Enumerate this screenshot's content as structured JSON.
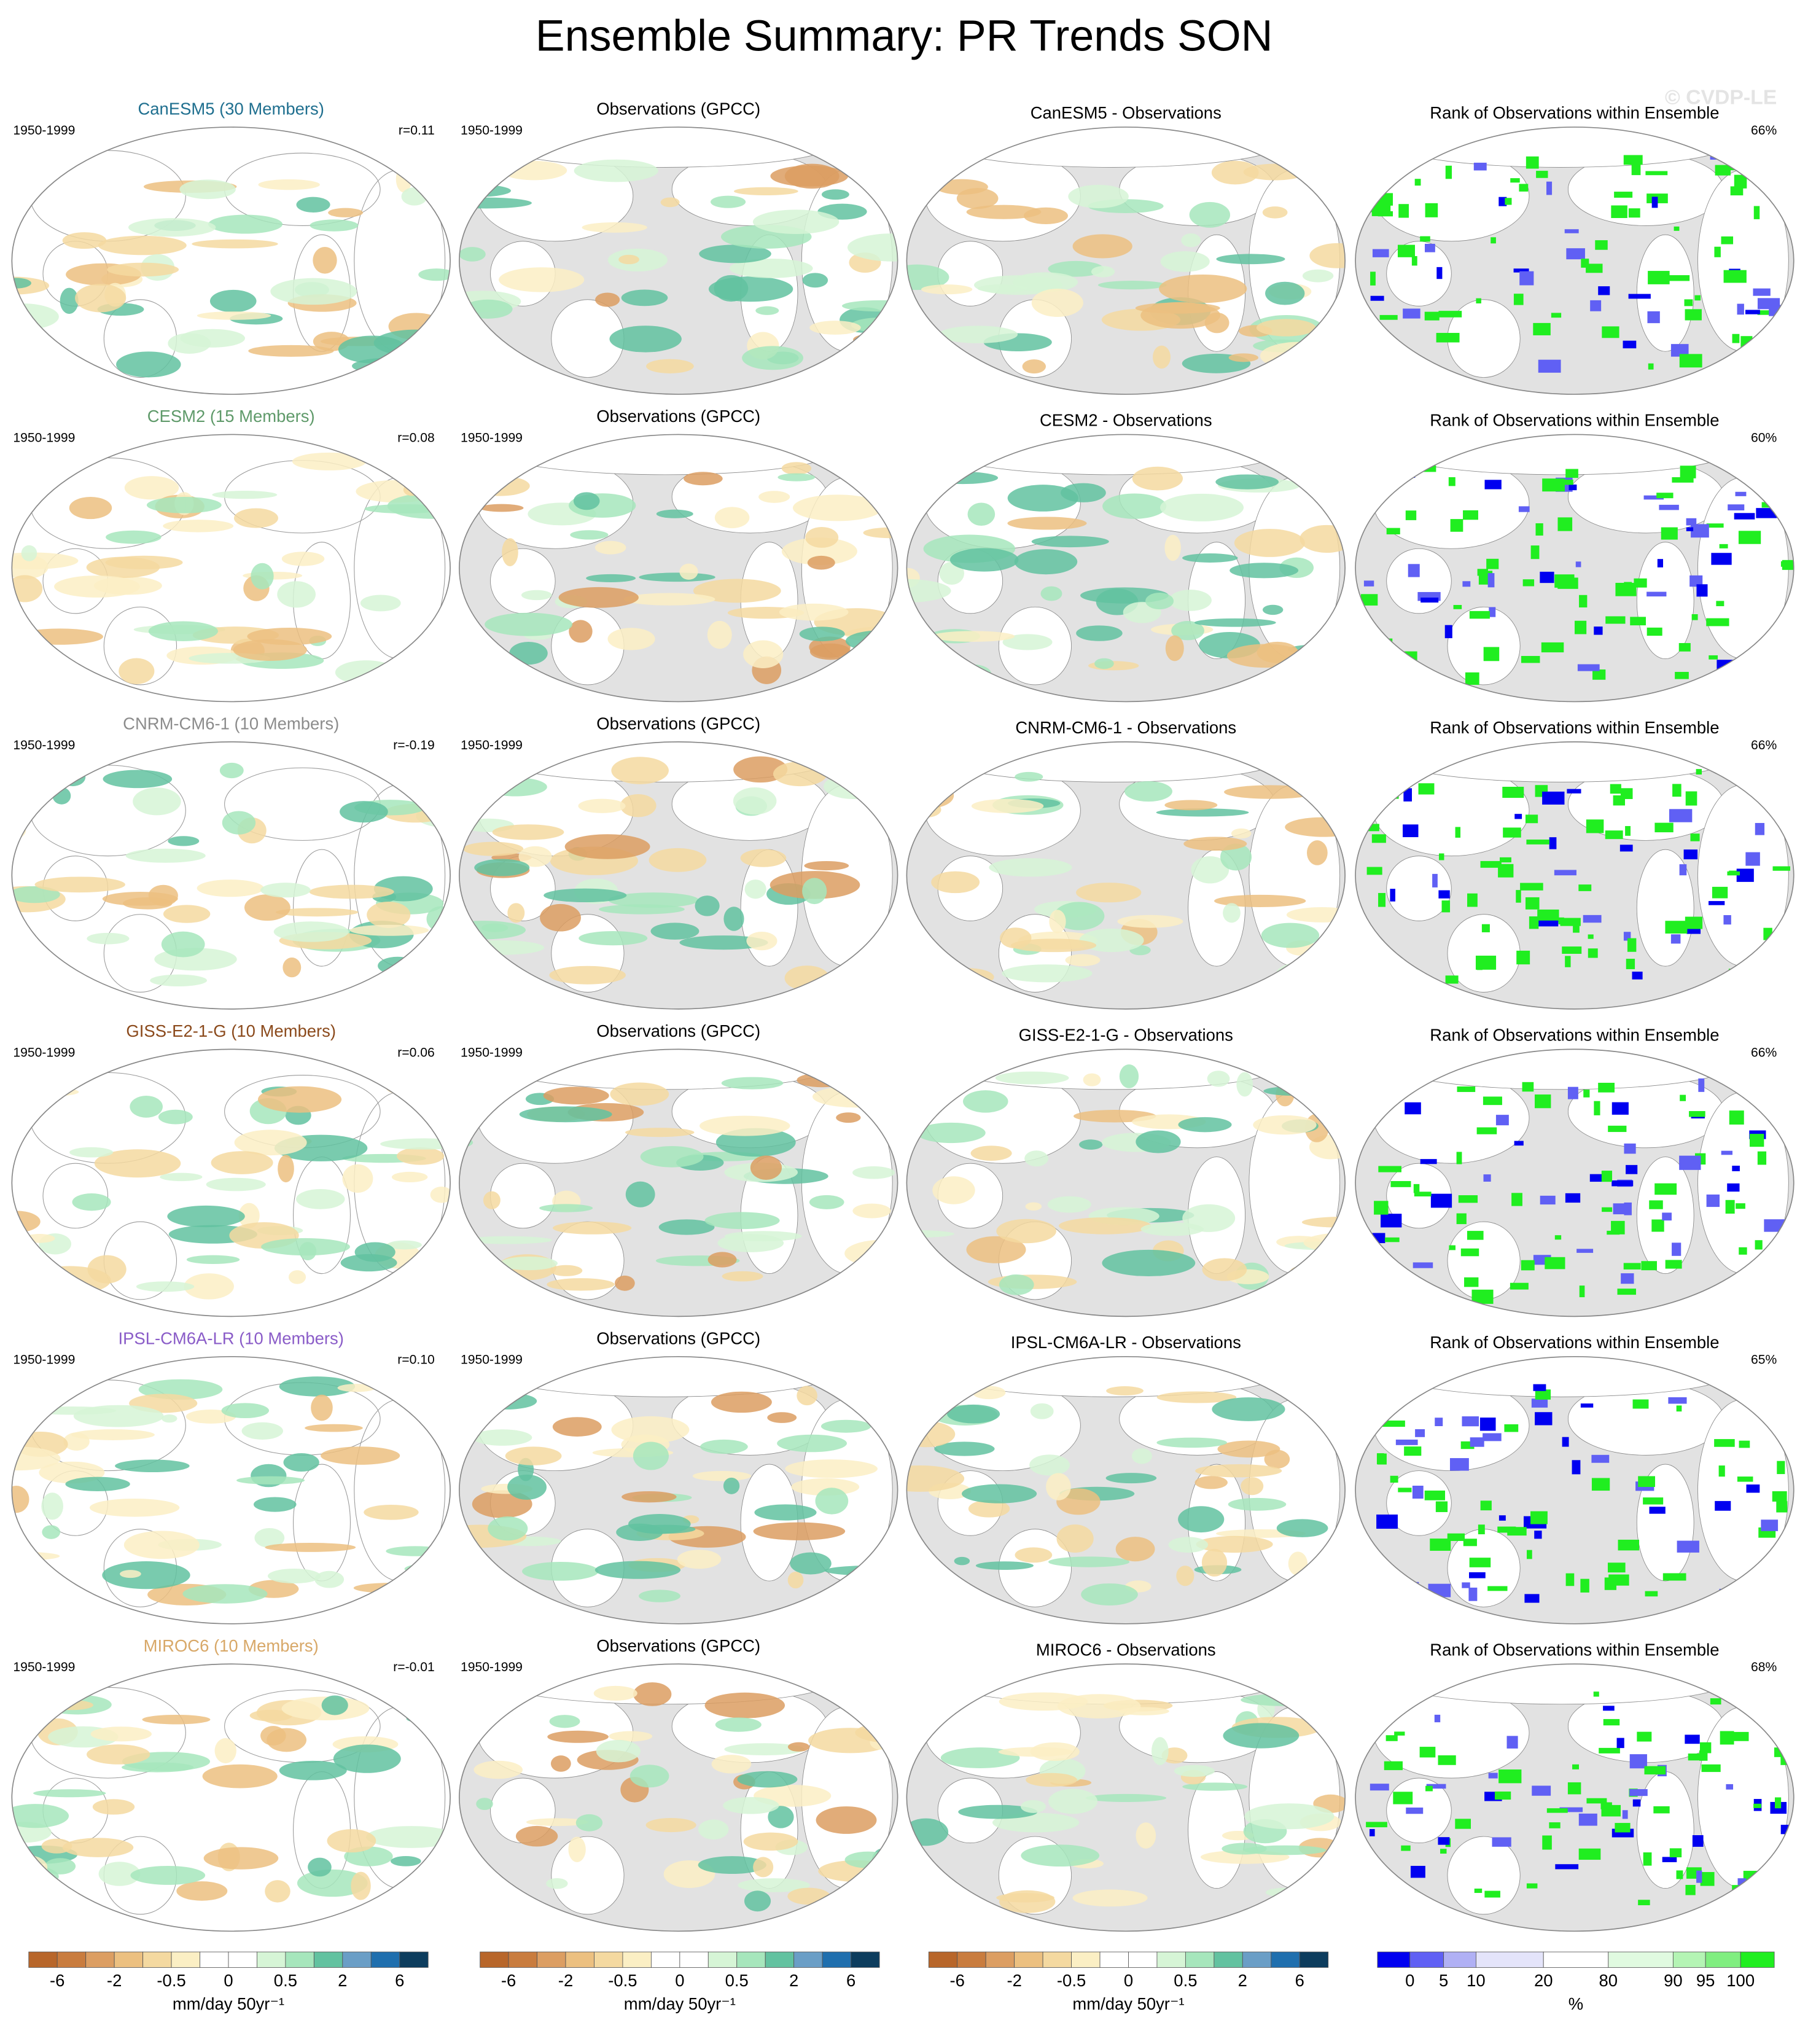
{
  "title": "Ensemble Summary: PR Trends SON",
  "watermark": "© CVDP-LE",
  "rows": [
    {
      "model": "CanESM5 (30 Members)",
      "model_color": "#1f6f8f",
      "period": "1950-1999",
      "r": "r=0.11",
      "obs_title": "Observations (GPCC)",
      "obs_period": "1950-1999",
      "diff_title": "CanESM5 - Observations",
      "rank_title": "Rank of Observations within Ensemble",
      "rank_pct": "66%"
    },
    {
      "model": "CESM2 (15 Members)",
      "model_color": "#5f9a6a",
      "period": "1950-1999",
      "r": "r=0.08",
      "obs_title": "Observations (GPCC)",
      "obs_period": "1950-1999",
      "diff_title": "CESM2 - Observations",
      "rank_title": "Rank of Observations within Ensemble",
      "rank_pct": "60%"
    },
    {
      "model": "CNRM-CM6-1 (10 Members)",
      "model_color": "#8c8c8c",
      "period": "1950-1999",
      "r": "r=-0.19",
      "obs_title": "Observations (GPCC)",
      "obs_period": "1950-1999",
      "diff_title": "CNRM-CM6-1 - Observations",
      "rank_title": "Rank of Observations within Ensemble",
      "rank_pct": "66%"
    },
    {
      "model": "GISS-E2-1-G (10 Members)",
      "model_color": "#8b4a1c",
      "period": "1950-1999",
      "r": "r=0.06",
      "obs_title": "Observations (GPCC)",
      "obs_period": "1950-1999",
      "diff_title": "GISS-E2-1-G - Observations",
      "rank_title": "Rank of Observations within Ensemble",
      "rank_pct": "66%"
    },
    {
      "model": "IPSL-CM6A-LR (10 Members)",
      "model_color": "#8a5cc8",
      "period": "1950-1999",
      "r": "r=0.10",
      "obs_title": "Observations (GPCC)",
      "obs_period": "1950-1999",
      "diff_title": "IPSL-CM6A-LR - Observations",
      "rank_title": "Rank of Observations within Ensemble",
      "rank_pct": "65%"
    },
    {
      "model": "MIROC6 (10 Members)",
      "model_color": "#d8a868",
      "period": "1950-1999",
      "r": "r=-0.01",
      "obs_title": "Observations (GPCC)",
      "obs_period": "1950-1999",
      "diff_title": "MIROC6 - Observations",
      "rank_title": "Rank of Observations within Ensemble",
      "rank_pct": "68%"
    }
  ],
  "trend_colorbar": {
    "colors": [
      "#b8662a",
      "#c97c3e",
      "#dc9e62",
      "#ecc080",
      "#f4d9a0",
      "#fbefc4",
      "#ffffff",
      "#ffffff",
      "#d6f5d6",
      "#a6e6bc",
      "#62c2a0",
      "#6a9ec6",
      "#1f6fae",
      "#0d3d5e"
    ],
    "ticks": [
      -6,
      -2,
      -0.5,
      0,
      0.5,
      2,
      6
    ],
    "unit": "mm/day 50yr⁻¹"
  },
  "rank_colorbar": {
    "colors": [
      "#0000f0",
      "#6060f4",
      "#b0b0f4",
      "#e4e4fa",
      "#ffffff",
      "#e0fae0",
      "#b4f4b4",
      "#80ee80",
      "#20ee20"
    ],
    "ticks": [
      0,
      5,
      10,
      20,
      80,
      90,
      95,
      100
    ],
    "unit": "%"
  }
}
